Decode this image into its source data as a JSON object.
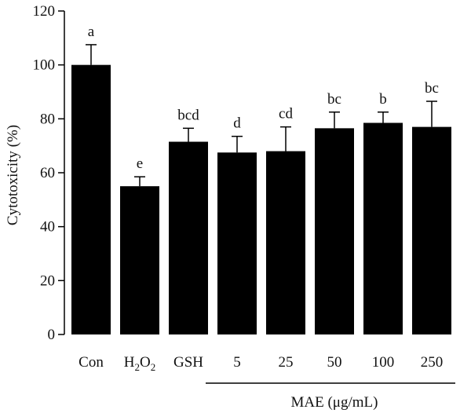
{
  "chart_data": {
    "type": "bar",
    "title": "",
    "ylabel": "Cytotoxicity (%)",
    "ylim": [
      0,
      120
    ],
    "yticks": [
      "0",
      "20",
      "40",
      "60",
      "80",
      "100",
      "120"
    ],
    "categories": [
      "Con",
      "H2O2",
      "GSH",
      "5",
      "25",
      "50",
      "100",
      "250"
    ],
    "values": [
      100,
      55,
      71.5,
      67.5,
      68,
      76.5,
      78.5,
      77
    ],
    "error": [
      7.5,
      3.5,
      5,
      6,
      9,
      6,
      4,
      9.5
    ],
    "significance": [
      "a",
      "e",
      "bcd",
      "d",
      "cd",
      "bc",
      "b",
      "bc"
    ],
    "group_label": "MAE (μg/mL)",
    "bar_color": "#000000"
  }
}
